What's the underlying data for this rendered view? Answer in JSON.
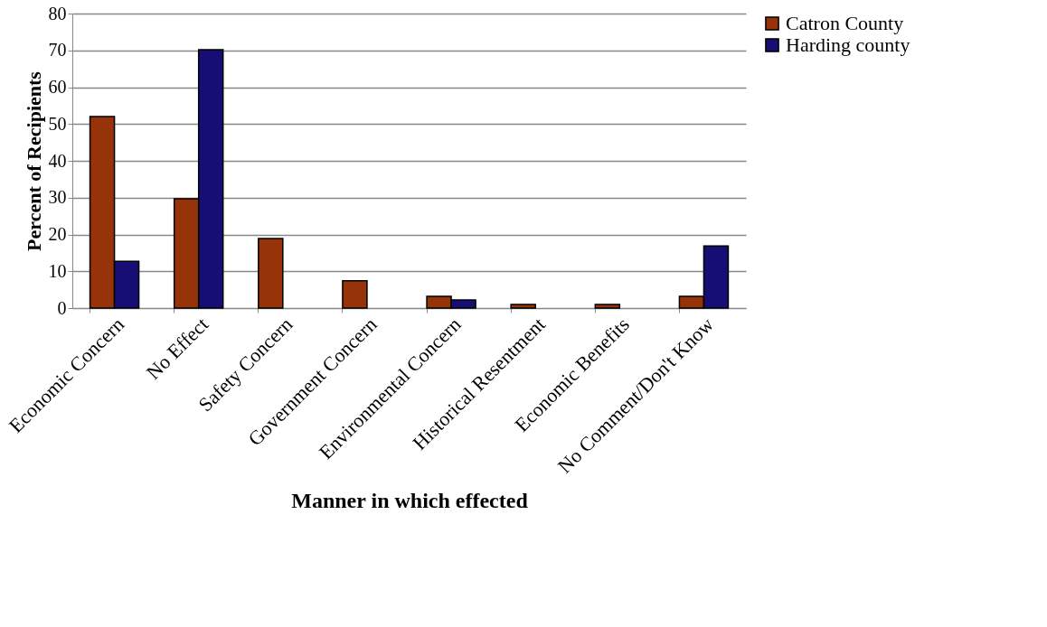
{
  "chart_data": {
    "type": "bar",
    "xlabel": "Manner  in which effected",
    "ylabel": "Percent of Recipients",
    "categories": [
      "Economic Concern",
      "No Effect",
      "Safety Concern",
      "Government Concern",
      "Environmental Concern",
      "Historical Resentment",
      "Economic Benefits",
      "No Comment/Don't Know"
    ],
    "series": [
      {
        "name": "Catron County",
        "color": "#963309",
        "values": [
          52,
          29.7,
          18.9,
          7.4,
          3.2,
          1,
          1,
          3.2
        ]
      },
      {
        "name": "Harding county",
        "color": "#160e72",
        "values": [
          12.7,
          70.2,
          null,
          null,
          2.2,
          null,
          null,
          16.9
        ]
      }
    ],
    "ylim": [
      0,
      80
    ],
    "yticks": [
      0,
      10,
      20,
      30,
      40,
      50,
      60,
      70,
      80
    ],
    "grid": "y",
    "legend": "right"
  }
}
